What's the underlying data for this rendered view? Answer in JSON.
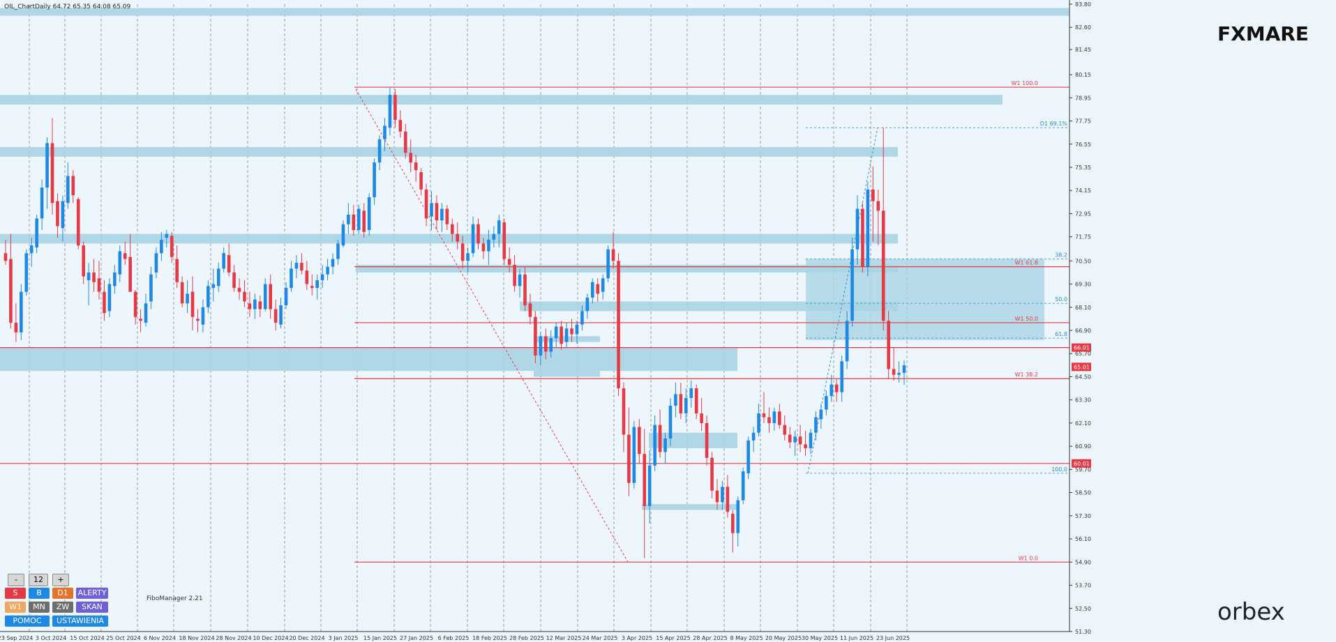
{
  "header": {
    "info": "OIL_ChartDaily  64.72 65.35 64.08 65.09"
  },
  "brand": {
    "fxmare": "FXMARE",
    "orbex": "orbex",
    "fibo": "FiboManager 2.21"
  },
  "colors": {
    "background": "#eef6fd",
    "bull": "#1e88e5",
    "bear": "#e53946",
    "zone": "#a9d4e2",
    "level": "#e53946",
    "fib": "#2b8fd6"
  },
  "panel": {
    "minus": "-",
    "value": "12",
    "plus": "+",
    "s": "S",
    "b": "B",
    "d1": "D1",
    "alerty": "ALERTY",
    "w1": "W1",
    "mn": "MN",
    "zw": "ZW",
    "skan": "SKAN",
    "pomoc": "POMOC",
    "ustawienia": "USTAWIENIA"
  },
  "chart_data": {
    "type": "candlestick",
    "symbol": "OIL",
    "timeframe": "Daily",
    "last_bar": {
      "open": 64.72,
      "high": 65.35,
      "low": 64.08,
      "close": 65.09
    },
    "ylim": [
      51.3,
      83.8
    ],
    "yticks": [
      "83.80",
      "82.60",
      "81.45",
      "80.15",
      "78.95",
      "77.75",
      "76.55",
      "75.35",
      "74.15",
      "72.95",
      "71.75",
      "70.50",
      "69.30",
      "68.10",
      "66.90",
      "65.70",
      "64.50",
      "63.30",
      "62.10",
      "60.90",
      "59.70",
      "58.50",
      "57.30",
      "56.10",
      "54.90",
      "53.70",
      "52.50",
      "51.30"
    ],
    "xticks": [
      "23 Sep 2024",
      "3 Oct 2024",
      "15 Oct 2024",
      "25 Oct 2024",
      "6 Nov 2024",
      "18 Nov 2024",
      "28 Nov 2024",
      "10 Dec 2024",
      "20 Dec 2024",
      "3 Jan 2025",
      "15 Jan 2025",
      "27 Jan 2025",
      "6 Feb 2025",
      "18 Feb 2025",
      "28 Feb 2025",
      "12 Mar 2025",
      "24 Mar 2025",
      "3 Apr 2025",
      "15 Apr 2025",
      "28 Apr 2025",
      "8 May 2025",
      "20 May 2025",
      "30 May 2025",
      "11 Jun 2025",
      "23 Jun 2025"
    ],
    "price_tags": [
      {
        "label": "66.01",
        "value": 66.01
      },
      {
        "label": "65.01",
        "value": 65.01
      },
      {
        "label": "60.01",
        "value": 60.01
      }
    ],
    "levels": [
      {
        "label": "W1 100.0",
        "value": 79.5,
        "x_start": "3 Jan 2025"
      },
      {
        "label": "W1 61.8",
        "value": 70.2,
        "x_start": "3 Jan 2025"
      },
      {
        "label": "W1 50.0",
        "value": 67.3,
        "x_start": "3 Jan 2025"
      },
      {
        "label": "W1 38.2",
        "value": 64.4,
        "x_start": "3 Jan 2025"
      },
      {
        "label": "W1 0.0",
        "value": 54.9,
        "x_start": "3 Jan 2025"
      },
      {
        "label": "",
        "value": 66.01,
        "x_start": "23 Sep 2024"
      },
      {
        "label": "",
        "value": 60.01,
        "x_start": "23 Sep 2024"
      }
    ],
    "fib_dashed": [
      {
        "label": "D1 69.1%",
        "value": 77.4
      },
      {
        "label": "38.2",
        "value": 70.6
      },
      {
        "label": "50.0",
        "value": 68.3
      },
      {
        "label": "61.8",
        "value": 66.5
      },
      {
        "label": "100.0",
        "value": 59.5
      }
    ],
    "candles": [
      [
        70.9,
        71.6,
        70.3,
        70.5
      ],
      [
        70.6,
        71.9,
        67.0,
        67.3
      ],
      [
        67.3,
        68.3,
        66.3,
        66.8
      ],
      [
        66.8,
        69.3,
        66.4,
        68.9
      ],
      [
        68.9,
        71.1,
        68.7,
        70.9
      ],
      [
        70.9,
        71.7,
        70.2,
        71.3
      ],
      [
        71.2,
        72.9,
        70.9,
        72.7
      ],
      [
        72.7,
        74.7,
        72.1,
        74.3
      ],
      [
        74.3,
        76.9,
        73.2,
        76.6
      ],
      [
        76.6,
        77.9,
        72.9,
        73.5
      ],
      [
        73.6,
        74.0,
        71.7,
        72.3
      ],
      [
        72.2,
        73.9,
        71.5,
        73.6
      ],
      [
        73.5,
        75.6,
        73.2,
        74.9
      ],
      [
        74.9,
        75.2,
        73.5,
        73.9
      ],
      [
        73.7,
        73.8,
        71.1,
        71.3
      ],
      [
        71.3,
        71.5,
        69.3,
        69.7
      ],
      [
        69.5,
        70.4,
        68.2,
        69.9
      ],
      [
        69.9,
        70.6,
        68.9,
        69.4
      ],
      [
        69.6,
        70.5,
        68.5,
        68.9
      ],
      [
        68.9,
        69.5,
        67.4,
        67.8
      ],
      [
        67.9,
        69.6,
        67.6,
        69.3
      ],
      [
        69.2,
        70.3,
        68.8,
        69.9
      ],
      [
        69.8,
        71.3,
        69.4,
        71.0
      ],
      [
        70.9,
        71.5,
        70.3,
        70.6
      ],
      [
        70.7,
        71.9,
        68.9,
        68.9
      ],
      [
        68.9,
        69.0,
        67.2,
        67.6
      ],
      [
        67.5,
        68.0,
        66.8,
        67.4
      ],
      [
        67.3,
        68.8,
        67.1,
        68.3
      ],
      [
        68.4,
        70.2,
        68.0,
        69.8
      ],
      [
        69.9,
        71.2,
        69.6,
        70.9
      ],
      [
        70.9,
        72.0,
        70.5,
        71.6
      ],
      [
        71.7,
        72.1,
        71.2,
        71.9
      ],
      [
        71.8,
        72.0,
        70.4,
        70.7
      ],
      [
        70.6,
        71.3,
        69.1,
        69.4
      ],
      [
        69.4,
        69.7,
        68.1,
        68.3
      ],
      [
        68.3,
        69.5,
        67.8,
        68.8
      ],
      [
        68.9,
        69.7,
        66.9,
        67.6
      ],
      [
        67.5,
        68.0,
        66.8,
        67.4
      ],
      [
        67.2,
        68.5,
        66.8,
        68.1
      ],
      [
        68.1,
        69.5,
        67.8,
        69.2
      ],
      [
        69.1,
        70.1,
        68.4,
        69.3
      ],
      [
        69.2,
        70.4,
        68.9,
        70.1
      ],
      [
        70.1,
        71.2,
        69.9,
        70.9
      ],
      [
        70.8,
        71.4,
        69.7,
        69.9
      ],
      [
        69.9,
        70.3,
        68.9,
        69.1
      ],
      [
        69.1,
        69.6,
        68.5,
        68.9
      ],
      [
        68.9,
        69.5,
        68.1,
        68.4
      ],
      [
        68.3,
        68.9,
        67.6,
        68.0
      ],
      [
        68.0,
        68.8,
        67.5,
        68.5
      ],
      [
        68.4,
        68.7,
        67.6,
        68.0
      ],
      [
        68.0,
        69.6,
        67.9,
        69.3
      ],
      [
        69.3,
        69.8,
        67.5,
        68.0
      ],
      [
        68.0,
        68.5,
        66.9,
        67.3
      ],
      [
        67.2,
        68.6,
        67.0,
        68.2
      ],
      [
        68.2,
        69.4,
        68.0,
        69.1
      ],
      [
        69.1,
        70.5,
        68.9,
        70.1
      ],
      [
        70.1,
        70.8,
        69.6,
        70.4
      ],
      [
        70.4,
        70.9,
        69.8,
        70.0
      ],
      [
        70.0,
        70.5,
        69.0,
        69.3
      ],
      [
        69.2,
        69.8,
        68.7,
        69.1
      ],
      [
        69.1,
        69.8,
        68.5,
        69.5
      ],
      [
        69.5,
        70.3,
        69.1,
        69.8
      ],
      [
        69.8,
        70.6,
        69.5,
        70.2
      ],
      [
        70.2,
        70.9,
        69.8,
        70.6
      ],
      [
        70.6,
        71.6,
        70.3,
        71.4
      ],
      [
        71.3,
        72.6,
        71.2,
        72.4
      ],
      [
        72.4,
        73.5,
        71.9,
        72.9
      ],
      [
        72.9,
        73.4,
        71.8,
        72.1
      ],
      [
        72.1,
        73.4,
        71.9,
        73.2
      ],
      [
        73.1,
        73.5,
        71.7,
        72.0
      ],
      [
        72.1,
        74.0,
        71.8,
        73.8
      ],
      [
        73.8,
        75.8,
        73.4,
        75.6
      ],
      [
        75.6,
        77.0,
        75.2,
        76.8
      ],
      [
        76.8,
        77.9,
        76.2,
        77.5
      ],
      [
        77.4,
        79.5,
        77.0,
        79.1
      ],
      [
        79.1,
        79.4,
        77.4,
        77.8
      ],
      [
        77.8,
        78.3,
        76.9,
        77.2
      ],
      [
        77.2,
        77.6,
        75.8,
        76.1
      ],
      [
        76.1,
        76.8,
        75.1,
        75.6
      ],
      [
        75.6,
        76.0,
        74.6,
        75.2
      ],
      [
        75.1,
        75.3,
        73.9,
        74.2
      ],
      [
        74.2,
        74.5,
        72.3,
        72.7
      ],
      [
        72.8,
        74.1,
        72.1,
        73.5
      ],
      [
        73.5,
        73.9,
        72.1,
        72.6
      ],
      [
        72.6,
        73.5,
        72.0,
        73.2
      ],
      [
        73.2,
        73.4,
        72.1,
        72.4
      ],
      [
        72.4,
        72.7,
        71.5,
        71.9
      ],
      [
        71.9,
        72.5,
        71.1,
        71.5
      ],
      [
        71.4,
        71.8,
        70.1,
        70.5
      ],
      [
        70.5,
        71.2,
        69.9,
        70.9
      ],
      [
        70.9,
        72.8,
        70.7,
        72.4
      ],
      [
        72.4,
        72.7,
        71.1,
        71.4
      ],
      [
        71.4,
        71.7,
        70.6,
        71.0
      ],
      [
        71.0,
        72.1,
        70.3,
        71.6
      ],
      [
        71.6,
        72.3,
        71.2,
        71.9
      ],
      [
        71.9,
        72.9,
        71.2,
        72.6
      ],
      [
        72.5,
        72.7,
        70.3,
        70.6
      ],
      [
        70.6,
        71.2,
        69.9,
        70.3
      ],
      [
        70.3,
        70.8,
        68.9,
        69.2
      ],
      [
        69.2,
        70.1,
        68.6,
        69.8
      ],
      [
        69.8,
        70.2,
        67.9,
        68.2
      ],
      [
        68.3,
        68.8,
        67.2,
        67.6
      ],
      [
        67.6,
        67.9,
        65.2,
        65.6
      ],
      [
        65.6,
        66.8,
        65.1,
        66.6
      ],
      [
        66.6,
        67.0,
        65.4,
        65.8
      ],
      [
        65.8,
        66.9,
        65.5,
        66.5
      ],
      [
        66.5,
        67.3,
        66.0,
        67.1
      ],
      [
        67.1,
        67.4,
        65.9,
        66.2
      ],
      [
        66.3,
        67.3,
        66.0,
        67.0
      ],
      [
        67.0,
        67.5,
        66.3,
        66.7
      ],
      [
        66.7,
        67.4,
        66.2,
        67.2
      ],
      [
        67.2,
        68.2,
        66.9,
        67.9
      ],
      [
        67.9,
        68.8,
        67.5,
        68.6
      ],
      [
        68.6,
        69.6,
        68.3,
        69.4
      ],
      [
        69.3,
        69.6,
        68.4,
        68.8
      ],
      [
        68.9,
        69.8,
        68.5,
        69.6
      ],
      [
        69.6,
        71.3,
        69.4,
        71.1
      ],
      [
        71.1,
        72.0,
        70.1,
        70.5
      ],
      [
        70.5,
        70.9,
        63.5,
        63.9
      ],
      [
        63.9,
        64.2,
        60.6,
        61.5
      ],
      [
        61.5,
        62.9,
        58.3,
        59.0
      ],
      [
        59.0,
        62.2,
        58.7,
        61.9
      ],
      [
        61.9,
        62.3,
        60.0,
        60.5
      ],
      [
        60.5,
        61.8,
        55.1,
        57.8
      ],
      [
        57.8,
        60.7,
        56.9,
        59.9
      ],
      [
        59.9,
        62.5,
        59.6,
        62.0
      ],
      [
        62.0,
        62.8,
        60.3,
        60.6
      ],
      [
        60.6,
        61.6,
        60.0,
        61.3
      ],
      [
        61.3,
        63.4,
        60.9,
        63.0
      ],
      [
        63.0,
        64.2,
        62.4,
        63.6
      ],
      [
        63.6,
        64.2,
        62.3,
        62.6
      ],
      [
        62.6,
        63.9,
        62.1,
        63.4
      ],
      [
        63.4,
        64.3,
        62.9,
        63.9
      ],
      [
        63.9,
        64.1,
        62.3,
        62.6
      ],
      [
        62.6,
        63.4,
        61.7,
        62.1
      ],
      [
        62.1,
        62.5,
        59.9,
        60.3
      ],
      [
        60.3,
        60.6,
        58.2,
        58.6
      ],
      [
        58.6,
        59.2,
        57.6,
        58.0
      ],
      [
        58.0,
        59.1,
        57.6,
        58.8
      ],
      [
        58.8,
        59.4,
        57.2,
        57.5
      ],
      [
        57.4,
        57.6,
        55.4,
        56.4
      ],
      [
        56.4,
        58.3,
        55.7,
        58.1
      ],
      [
        58.1,
        59.8,
        57.9,
        59.6
      ],
      [
        59.5,
        61.4,
        59.2,
        61.2
      ],
      [
        61.2,
        61.9,
        60.6,
        61.6
      ],
      [
        61.6,
        63.1,
        61.4,
        62.6
      ],
      [
        62.6,
        63.7,
        62.1,
        62.4
      ],
      [
        62.4,
        62.9,
        61.6,
        62.1
      ],
      [
        62.1,
        62.9,
        61.7,
        62.7
      ],
      [
        62.7,
        63.1,
        61.8,
        62.0
      ],
      [
        62.0,
        62.5,
        61.2,
        61.5
      ],
      [
        61.5,
        61.9,
        60.8,
        61.1
      ],
      [
        61.1,
        61.7,
        60.4,
        61.4
      ],
      [
        61.4,
        62.0,
        60.6,
        61.0
      ],
      [
        61.0,
        61.7,
        60.4,
        60.8
      ],
      [
        60.8,
        61.8,
        60.5,
        61.6
      ],
      [
        61.6,
        62.7,
        61.2,
        62.4
      ],
      [
        62.3,
        63.1,
        61.8,
        62.8
      ],
      [
        62.8,
        63.8,
        62.5,
        63.5
      ],
      [
        63.5,
        64.6,
        63.2,
        64.1
      ],
      [
        64.1,
        64.4,
        63.2,
        63.7
      ],
      [
        63.7,
        65.6,
        63.2,
        65.3
      ],
      [
        65.3,
        67.9,
        64.9,
        67.4
      ],
      [
        67.4,
        71.7,
        67.1,
        71.1
      ],
      [
        71.1,
        73.9,
        70.3,
        73.2
      ],
      [
        73.2,
        73.5,
        69.9,
        70.2
      ],
      [
        70.2,
        74.6,
        69.7,
        74.2
      ],
      [
        74.2,
        75.4,
        71.5,
        73.6
      ],
      [
        73.6,
        74.2,
        71.3,
        73.1
      ],
      [
        73.1,
        77.4,
        66.9,
        67.4
      ],
      [
        67.4,
        67.9,
        64.4,
        64.9
      ],
      [
        64.9,
        66.0,
        64.3,
        64.6
      ],
      [
        64.6,
        65.3,
        64.2,
        64.7
      ],
      [
        64.7,
        65.35,
        64.08,
        65.09
      ]
    ]
  }
}
